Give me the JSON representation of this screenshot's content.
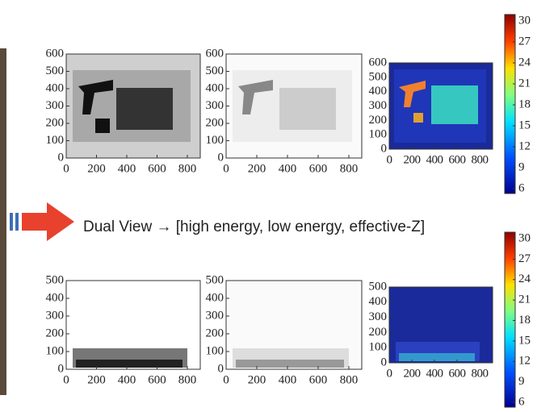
{
  "rows": [
    {
      "panels": [
        {
          "yticks": [
            0,
            100,
            200,
            300,
            400,
            500,
            600
          ],
          "xticks": [
            0,
            200,
            400,
            600,
            800
          ]
        },
        {
          "yticks": [
            0,
            100,
            200,
            300,
            400,
            500,
            600
          ],
          "xticks": [
            0,
            200,
            400,
            600,
            800
          ]
        },
        {
          "yticks": [
            0,
            100,
            200,
            300,
            400,
            500,
            600
          ],
          "xticks": [
            0,
            200,
            400,
            600,
            800
          ]
        }
      ],
      "colorbar": [
        6,
        9,
        12,
        15,
        18,
        21,
        24,
        27,
        30
      ]
    },
    {
      "panels": [
        {
          "yticks": [
            0,
            100,
            200,
            300,
            400,
            500
          ],
          "xticks": [
            0,
            200,
            400,
            600,
            800
          ]
        },
        {
          "yticks": [
            0,
            100,
            200,
            300,
            400,
            500
          ],
          "xticks": [
            0,
            200,
            400,
            600,
            800
          ]
        },
        {
          "yticks": [
            0,
            100,
            200,
            300,
            400,
            500
          ],
          "xticks": [
            0,
            200,
            400,
            600,
            800
          ]
        }
      ],
      "colorbar": [
        6,
        9,
        12,
        15,
        18,
        21,
        24,
        27,
        30
      ]
    }
  ],
  "caption": "Dual View → [high energy, low energy, effective-Z]"
}
